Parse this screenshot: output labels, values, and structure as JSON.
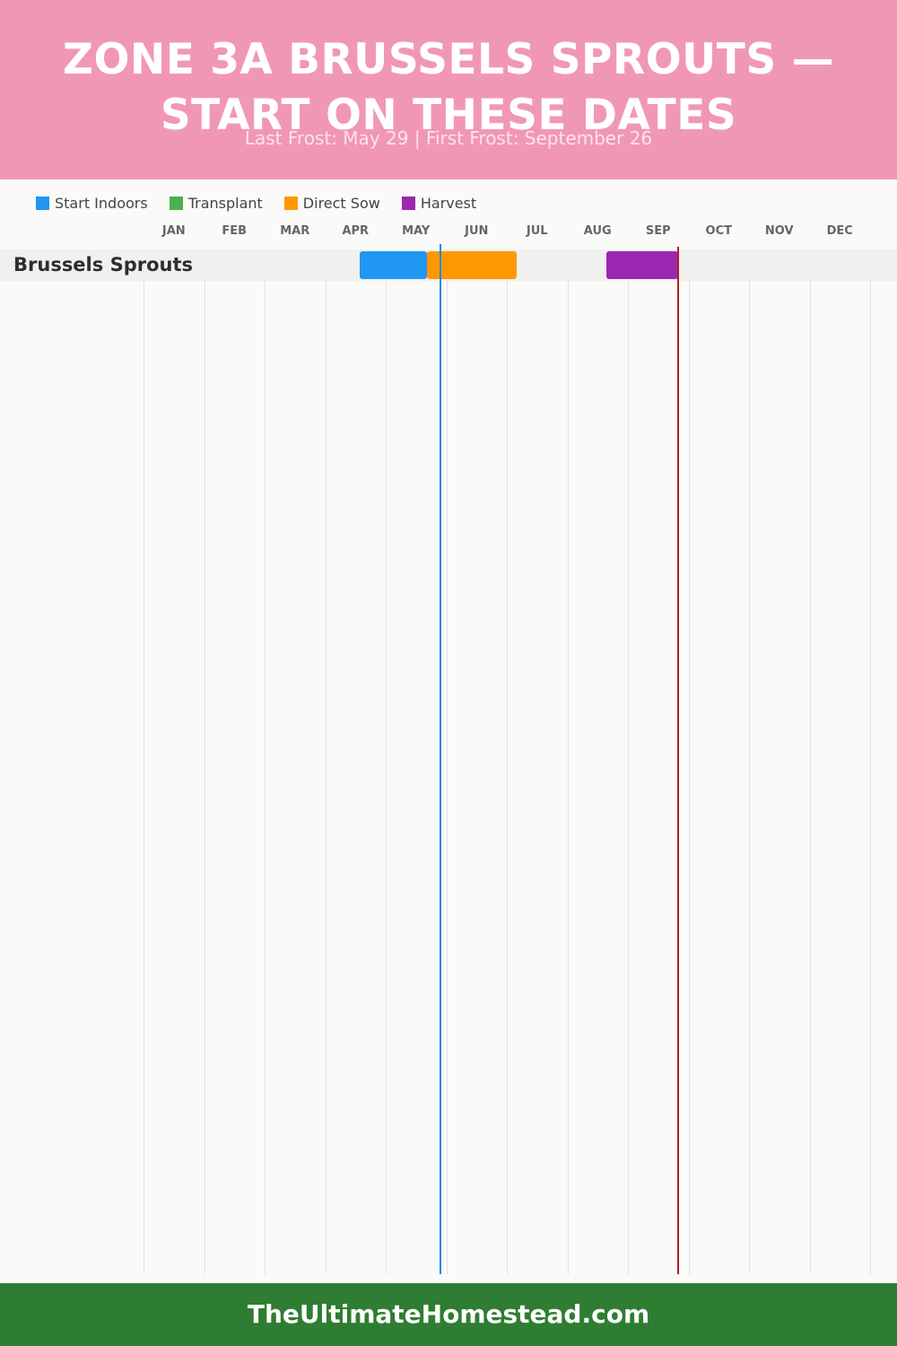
{
  "header": {
    "title": "ZONE 3A BRUSSELS SPROUTS — START ON THESE DATES",
    "subtitle": "Last Frost: May 29 | First Frost: September 26",
    "bg_color": "#f197b6"
  },
  "legend": [
    {
      "label": "Start Indoors",
      "color": "#2196f3"
    },
    {
      "label": "Transplant",
      "color": "#4caf50"
    },
    {
      "label": "Direct Sow",
      "color": "#ff9800"
    },
    {
      "label": "Harvest",
      "color": "#9c27b0"
    }
  ],
  "chart_data": {
    "type": "gantt",
    "months": [
      "JAN",
      "FEB",
      "MAR",
      "APR",
      "MAY",
      "JUN",
      "JUL",
      "AUG",
      "SEP",
      "OCT",
      "NOV",
      "DEC"
    ],
    "rows": [
      {
        "name": "Brussels Sprouts",
        "tasks": [
          {
            "type": "Start Indoors",
            "start": "Apr 18",
            "end": "May 22"
          },
          {
            "type": "Direct Sow",
            "start": "May 22",
            "end": "Jul 6"
          },
          {
            "type": "Harvest",
            "start": "Aug 21",
            "end": "Sep 26"
          }
        ]
      }
    ],
    "markers": [
      {
        "label": "Last Frost",
        "date": "May 29",
        "color": "#1e88e5"
      },
      {
        "label": "First Frost",
        "date": "Sep 26",
        "color": "#b71c1c"
      }
    ]
  },
  "footer": {
    "text": "TheUltimateHomestead.com",
    "bg_color": "#2e7d32"
  }
}
